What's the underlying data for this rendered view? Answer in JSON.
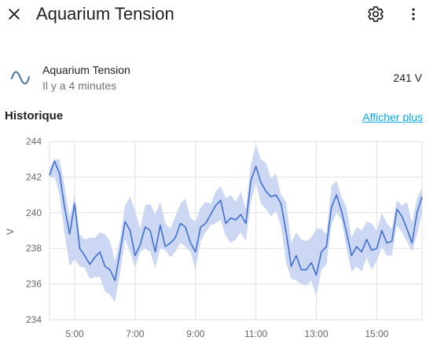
{
  "dialog": {
    "title": "Aquarium Tension",
    "close_icon": "close-icon",
    "settings_icon": "gear-icon",
    "menu_icon": "more-vert-icon"
  },
  "entity": {
    "icon": "sine-wave-icon",
    "name": "Aquarium Tension",
    "last_changed": "Il y a 4 minutes",
    "state": "241 V"
  },
  "history": {
    "title": "Historique",
    "show_more_label": "Afficher plus"
  },
  "colors": {
    "line": "#3f6fcf",
    "band": "#c9d6f2",
    "link": "#03a9f4",
    "grid": "#e0e0e0"
  },
  "chart_data": {
    "type": "line",
    "ylabel": "V",
    "xlabel": "",
    "title": "",
    "xlim": [
      "04:10",
      "16:30"
    ],
    "ylim": [
      234,
      244
    ],
    "yticks": [
      244,
      242,
      240,
      238,
      236,
      234
    ],
    "xticks": [
      "5:00",
      "7:00",
      "9:00",
      "11:00",
      "13:00",
      "15:00"
    ],
    "grid": true,
    "series": [
      {
        "kind": "mean",
        "x": [
          "04:10",
          "04:20",
          "04:30",
          "04:40",
          "04:50",
          "05:00",
          "05:10",
          "05:20",
          "05:30",
          "05:40",
          "05:50",
          "06:00",
          "06:10",
          "06:20",
          "06:30",
          "06:40",
          "06:50",
          "07:00",
          "07:10",
          "07:20",
          "07:30",
          "07:40",
          "07:50",
          "08:00",
          "08:10",
          "08:20",
          "08:30",
          "08:40",
          "08:50",
          "09:00",
          "09:10",
          "09:20",
          "09:30",
          "09:40",
          "09:50",
          "10:00",
          "10:10",
          "10:20",
          "10:30",
          "10:40",
          "10:50",
          "11:00",
          "11:10",
          "11:20",
          "11:30",
          "11:40",
          "11:50",
          "12:00",
          "12:10",
          "12:20",
          "12:30",
          "12:40",
          "12:50",
          "13:00",
          "13:10",
          "13:20",
          "13:30",
          "13:40",
          "13:50",
          "14:00",
          "14:10",
          "14:20",
          "14:30",
          "14:40",
          "14:50",
          "15:00",
          "15:10",
          "15:20",
          "15:30",
          "15:40",
          "15:50",
          "16:00",
          "16:10",
          "16:20",
          "16:30"
        ],
        "y": [
          242.1,
          242.9,
          242.2,
          240.3,
          238.8,
          240.5,
          238.0,
          237.6,
          237.1,
          237.5,
          237.8,
          237.0,
          236.8,
          236.2,
          237.8,
          239.5,
          239.0,
          237.6,
          238.2,
          239.2,
          239.0,
          237.8,
          239.3,
          238.1,
          238.3,
          238.6,
          239.4,
          239.2,
          238.3,
          237.8,
          239.2,
          239.4,
          239.9,
          240.4,
          240.7,
          239.4,
          239.7,
          239.6,
          239.9,
          239.4,
          241.8,
          242.6,
          241.7,
          241.2,
          240.9,
          241.0,
          240.5,
          238.9,
          237.0,
          237.6,
          236.8,
          236.8,
          237.2,
          236.5,
          237.8,
          238.1,
          240.3,
          241.0,
          240.1,
          238.9,
          237.6,
          238.1,
          237.8,
          238.5,
          237.9,
          238.0,
          239.0,
          238.3,
          238.4,
          240.2,
          239.8,
          239.1,
          238.3,
          240.0,
          240.9
        ]
      },
      {
        "kind": "max",
        "y": [
          242.5,
          243.0,
          243.0,
          241.5,
          239.7,
          241.0,
          238.8,
          238.5,
          238.6,
          238.6,
          238.9,
          238.8,
          238.4,
          237.3,
          238.5,
          240.4,
          240.9,
          240.1,
          239.1,
          240.4,
          240.5,
          239.9,
          240.6,
          239.4,
          239.1,
          239.8,
          240.5,
          240.8,
          239.7,
          239.5,
          240.3,
          240.6,
          240.5,
          241.2,
          241.5,
          240.8,
          241.0,
          240.6,
          241.2,
          240.2,
          242.7,
          243.8,
          243.0,
          242.8,
          241.9,
          242.2,
          241.0,
          240.6,
          238.3,
          238.9,
          238.5,
          238.4,
          238.6,
          239.1,
          239.1,
          238.8,
          241.5,
          241.8,
          240.9,
          240.3,
          238.6,
          239.2,
          239.0,
          239.5,
          239.4,
          239.0,
          240.0,
          239.4,
          239.1,
          240.7,
          240.4,
          240.6,
          239.4,
          240.8,
          241.4
        ]
      },
      {
        "kind": "min",
        "y": [
          242.0,
          242.0,
          241.0,
          238.8,
          237.0,
          237.4,
          237.0,
          236.9,
          236.3,
          236.4,
          236.4,
          235.6,
          235.4,
          235.0,
          236.6,
          238.5,
          237.8,
          236.9,
          237.8,
          238.0,
          237.8,
          236.9,
          238.0,
          237.9,
          237.5,
          237.8,
          238.3,
          238.1,
          237.8,
          236.8,
          238.4,
          238.9,
          239.3,
          239.4,
          239.6,
          238.7,
          238.3,
          238.5,
          238.9,
          238.4,
          240.6,
          241.7,
          240.5,
          240.2,
          239.8,
          240.1,
          239.2,
          237.2,
          236.3,
          236.2,
          236.0,
          235.9,
          236.2,
          235.3,
          236.8,
          237.1,
          239.3,
          240.0,
          239.6,
          238.0,
          236.7,
          237.0,
          236.7,
          237.5,
          236.8,
          237.3,
          238.1,
          237.6,
          237.6,
          239.3,
          238.9,
          238.4,
          237.8,
          238.8,
          240.0
        ]
      }
    ]
  }
}
